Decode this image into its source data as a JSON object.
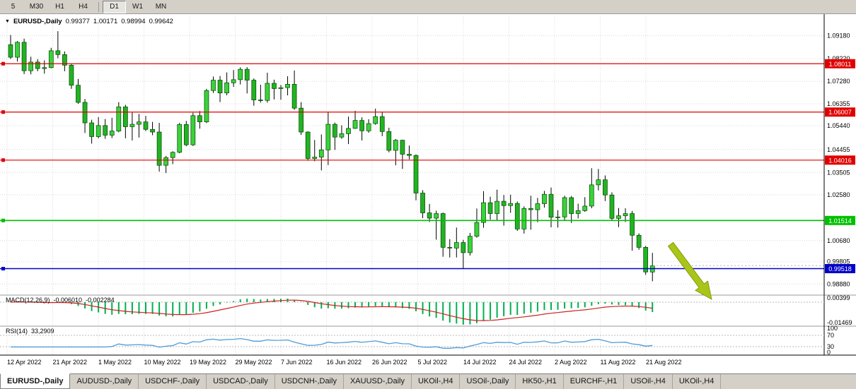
{
  "toolbar": {
    "timeframes": [
      {
        "label": "5"
      },
      {
        "label": "M30"
      },
      {
        "label": "H1"
      },
      {
        "label": "H4",
        "divider_after": true
      },
      {
        "label": "D1",
        "active": true
      },
      {
        "label": "W1"
      },
      {
        "label": "MN"
      }
    ]
  },
  "chart": {
    "title": {
      "symbol": "EURUSD-,Daily",
      "open": "0.99377",
      "high": "1.00171",
      "low": "0.98994",
      "close": "0.99642"
    },
    "y_axis_labels": [
      "1.09180",
      "1.08220",
      "1.07280",
      "1.06355",
      "1.05440",
      "1.04455",
      "1.03505",
      "1.02580",
      "1.00680",
      "0.99805",
      "0.98880"
    ],
    "x_axis_labels": [
      "12 Apr 2022",
      "21 Apr 2022",
      "1 May 2022",
      "10 May 2022",
      "19 May 2022",
      "29 May 2022",
      "7 Jun 2022",
      "16 Jun 2022",
      "26 Jun 2022",
      "5 Jul 2022",
      "14 Jul 2022",
      "24 Jul 2022",
      "2 Aug 2022",
      "11 Aug 2022",
      "21 Aug 2022"
    ]
  },
  "macd": {
    "name": "MACD(12,26,9)",
    "value_main": "-0.006010",
    "value_signal": "-0.002284",
    "scale_top": "0.00399",
    "scale_bottom": "-0.01469"
  },
  "rsi": {
    "name": "RSI(14)",
    "value": "33,2909",
    "scale_top": "100",
    "level_high": "70",
    "level_low": "30",
    "scale_bottom": "0"
  },
  "tabs": [
    {
      "label": "EURUSD-,Daily",
      "active": true
    },
    {
      "label": "AUDUSD-,Daily"
    },
    {
      "label": "USDCHF-,Daily"
    },
    {
      "label": "USDCAD-,Daily"
    },
    {
      "label": "USDCNH-,Daily"
    },
    {
      "label": "XAUUSD-,Daily"
    },
    {
      "label": "UKOil-,H4"
    },
    {
      "label": "USOil-,Daily"
    },
    {
      "label": "HK50-,H1"
    },
    {
      "label": "EURCHF-,H1"
    },
    {
      "label": "USOil-,H4"
    },
    {
      "label": "UKOil-,H4"
    }
  ],
  "colors": {
    "candle_up": "#3ad23a",
    "candle_down": "#22b322",
    "candle_border": "#004400",
    "wick": "#000000",
    "macd_histogram": "#00b050",
    "macd_signal": "#d02020",
    "rsi_line": "#4f9bd5",
    "grid": "#d9d9d9",
    "arrow": "#a9c517",
    "level_red": "#e00000",
    "level_green": "#00c000",
    "level_blue": "#0000c8"
  },
  "chart_data": {
    "type": "candlestick",
    "symbol": "EURUSD-",
    "timeframe": "Daily",
    "title": "EURUSD-,Daily 0.99377 1.00171 0.98994 0.99642",
    "current_ohlc": {
      "open": 0.99377,
      "high": 1.00171,
      "low": 0.98994,
      "close": 0.99642
    },
    "y_range": [
      0.9845,
      1.0995
    ],
    "x_tick_labels": [
      "12 Apr 2022",
      "21 Apr 2022",
      "1 May 2022",
      "10 May 2022",
      "19 May 2022",
      "29 May 2022",
      "7 Jun 2022",
      "16 Jun 2022",
      "26 Jun 2022",
      "5 Jul 2022",
      "14 Jul 2022",
      "24 Jul 2022",
      "2 Aug 2022",
      "11 Aug 2022",
      "21 Aug 2022"
    ],
    "horizontal_levels": [
      {
        "value": 1.08011,
        "color": "#e00000"
      },
      {
        "value": 1.06007,
        "color": "#e00000"
      },
      {
        "value": 1.04016,
        "color": "#e00000"
      },
      {
        "value": 1.01514,
        "color": "#00c000"
      },
      {
        "value": 0.99518,
        "color": "#0000c8"
      }
    ],
    "candles": [
      [
        1.088,
        1.092,
        1.0821,
        1.0828
      ],
      [
        1.0828,
        1.0895,
        1.081,
        1.089
      ],
      [
        1.089,
        1.0905,
        1.0758,
        1.0772
      ],
      [
        1.0772,
        1.083,
        1.0757,
        1.0808
      ],
      [
        1.0808,
        1.082,
        1.077,
        1.0781
      ],
      [
        1.0781,
        1.0815,
        1.076,
        1.0785
      ],
      [
        1.0785,
        1.0867,
        1.0782,
        1.0855
      ],
      [
        1.0855,
        1.0936,
        1.0824,
        1.0839
      ],
      [
        1.0839,
        1.0852,
        1.077,
        1.0795
      ],
      [
        1.0795,
        1.08,
        1.0697,
        1.0712
      ],
      [
        1.0712,
        1.0738,
        1.0635,
        1.0641
      ],
      [
        1.0641,
        1.0655,
        1.0514,
        1.0556
      ],
      [
        1.0556,
        1.0569,
        1.047,
        1.0499
      ],
      [
        1.0499,
        1.058,
        1.0492,
        1.0545
      ],
      [
        1.0545,
        1.0572,
        1.049,
        1.0505
      ],
      [
        1.0505,
        1.0577,
        1.0493,
        1.0522
      ],
      [
        1.0522,
        1.0642,
        1.0517,
        1.0622
      ],
      [
        1.0622,
        1.0631,
        1.0492,
        1.054
      ],
      [
        1.054,
        1.0599,
        1.0483,
        1.055
      ],
      [
        1.055,
        1.0593,
        1.0495,
        1.056
      ],
      [
        1.056,
        1.0585,
        1.0522,
        1.0529
      ],
      [
        1.0529,
        1.056,
        1.0505,
        1.0518
      ],
      [
        1.0518,
        1.0556,
        1.0354,
        1.038
      ],
      [
        1.038,
        1.0419,
        1.0348,
        1.0412
      ],
      [
        1.0412,
        1.0438,
        1.0385,
        1.0434
      ],
      [
        1.0434,
        1.0556,
        1.043,
        1.0549
      ],
      [
        1.0549,
        1.0564,
        1.0459,
        1.0465
      ],
      [
        1.0465,
        1.0598,
        1.046,
        1.0586
      ],
      [
        1.0586,
        1.0605,
        1.0532,
        1.056
      ],
      [
        1.056,
        1.0697,
        1.0555,
        1.069
      ],
      [
        1.069,
        1.0748,
        1.068,
        1.0733
      ],
      [
        1.0733,
        1.075,
        1.0642,
        1.068
      ],
      [
        1.068,
        1.0765,
        1.067,
        1.0722
      ],
      [
        1.0722,
        1.0775,
        1.0705,
        1.0735
      ],
      [
        1.0735,
        1.0786,
        1.0715,
        1.0778
      ],
      [
        1.0778,
        1.0787,
        1.0678,
        1.0733
      ],
      [
        1.0733,
        1.074,
        1.0627,
        1.0651
      ],
      [
        1.0651,
        1.0714,
        1.064,
        1.0649
      ],
      [
        1.0649,
        1.0764,
        1.064,
        1.072
      ],
      [
        1.072,
        1.0735,
        1.0653,
        1.0698
      ],
      [
        1.0698,
        1.0713,
        1.0652,
        1.0702
      ],
      [
        1.0702,
        1.0749,
        1.067,
        1.0716
      ],
      [
        1.0716,
        1.0773,
        1.061,
        1.0617
      ],
      [
        1.0617,
        1.0642,
        1.0506,
        1.0518
      ],
      [
        1.0518,
        1.0521,
        1.0399,
        1.0408
      ],
      [
        1.0408,
        1.0485,
        1.0397,
        1.0414
      ],
      [
        1.0414,
        1.0508,
        1.0359,
        1.0444
      ],
      [
        1.0444,
        1.0601,
        1.0381,
        1.055
      ],
      [
        1.055,
        1.0557,
        1.0444,
        1.0497
      ],
      [
        1.0497,
        1.0546,
        1.049,
        1.0511
      ],
      [
        1.0511,
        1.0582,
        1.0468,
        1.0533
      ],
      [
        1.0533,
        1.0606,
        1.0531,
        1.0566
      ],
      [
        1.0566,
        1.0579,
        1.0483,
        1.0523
      ],
      [
        1.0523,
        1.0571,
        1.0515,
        1.0553
      ],
      [
        1.0553,
        1.0615,
        1.0548,
        1.0582
      ],
      [
        1.0582,
        1.06,
        1.0501,
        1.052
      ],
      [
        1.052,
        1.0536,
        1.0434,
        1.0442
      ],
      [
        1.0442,
        1.0489,
        1.038,
        1.0484
      ],
      [
        1.0484,
        1.0486,
        1.0365,
        1.0426
      ],
      [
        1.0426,
        1.0462,
        1.0405,
        1.0421
      ],
      [
        1.0421,
        1.0425,
        1.0235,
        1.0265
      ],
      [
        1.0265,
        1.0277,
        1.0161,
        1.0183
      ],
      [
        1.0183,
        1.022,
        1.0145,
        1.0161
      ],
      [
        1.0161,
        1.0192,
        1.0072,
        1.018
      ],
      [
        1.018,
        1.0184,
        1.0001,
        1.004
      ],
      [
        1.004,
        1.0074,
        0.9998,
        1.0037
      ],
      [
        1.0037,
        1.0122,
        0.9998,
        1.006
      ],
      [
        1.006,
        1.0071,
        0.9952,
        1.0018
      ],
      [
        1.0018,
        1.01,
        1.0006,
        1.0086
      ],
      [
        1.0086,
        1.0201,
        1.008,
        1.0143
      ],
      [
        1.0143,
        1.0273,
        1.0121,
        1.0225
      ],
      [
        1.0225,
        1.025,
        1.0155,
        1.018
      ],
      [
        1.018,
        1.0279,
        1.0152,
        1.0231
      ],
      [
        1.0231,
        1.0257,
        1.013,
        1.0213
      ],
      [
        1.0213,
        1.0258,
        1.0183,
        1.0222
      ],
      [
        1.0222,
        1.023,
        1.0108,
        1.0116
      ],
      [
        1.0116,
        1.021,
        1.0097,
        1.0201
      ],
      [
        1.0201,
        1.0254,
        1.0113,
        1.0196
      ],
      [
        1.0196,
        1.0245,
        1.0144,
        1.0221
      ],
      [
        1.0221,
        1.0274,
        1.0205,
        1.026
      ],
      [
        1.026,
        1.0288,
        1.0123,
        1.0165
      ],
      [
        1.0165,
        1.0194,
        1.0122,
        1.0166
      ],
      [
        1.0166,
        1.0254,
        1.0151,
        1.0246
      ],
      [
        1.0246,
        1.0253,
        1.0141,
        1.018
      ],
      [
        1.018,
        1.0221,
        1.016,
        1.0192
      ],
      [
        1.0192,
        1.0248,
        1.0187,
        1.0211
      ],
      [
        1.0211,
        1.0368,
        1.0202,
        1.0299
      ],
      [
        1.0299,
        1.0365,
        1.0276,
        1.032
      ],
      [
        1.032,
        1.0338,
        1.0232,
        1.0257
      ],
      [
        1.0257,
        1.0268,
        1.0154,
        1.016
      ],
      [
        1.016,
        1.0203,
        1.0124,
        1.0171
      ],
      [
        1.0171,
        1.0202,
        1.0145,
        1.018
      ],
      [
        1.018,
        1.0191,
        1.0026,
        1.009
      ],
      [
        1.009,
        1.0098,
        1.003,
        1.004
      ],
      [
        1.004,
        1.0046,
        0.9926,
        0.9938
      ],
      [
        0.99377,
        1.00171,
        0.98994,
        0.99642
      ]
    ],
    "indicators": [
      {
        "name": "MACD",
        "params": [
          12,
          26,
          9
        ],
        "main_value": -0.00601,
        "signal_value": -0.002284,
        "scale": [
          -0.01469,
          0.00399
        ]
      },
      {
        "name": "RSI",
        "params": [
          14
        ],
        "value": 33.2909,
        "scale": [
          0,
          100
        ],
        "levels": [
          30,
          70
        ]
      }
    ]
  }
}
